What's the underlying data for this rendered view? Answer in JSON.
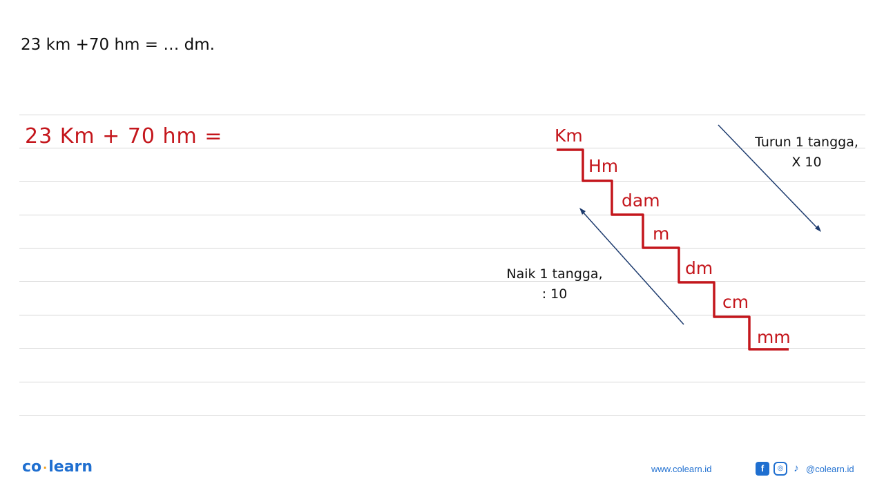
{
  "question": {
    "text": "23 km +70 hm = …   dm."
  },
  "handwriting": {
    "equation": "23 Km + 70 hm =",
    "units": [
      "Km",
      "Hm",
      "dam",
      "m",
      "dm",
      "cm",
      "mm"
    ]
  },
  "notes": {
    "down": {
      "line1": "Turun 1 tangga,",
      "line2": "X 10"
    },
    "up": {
      "line1": "Naik 1 tangga,",
      "line2": ": 10"
    }
  },
  "footer": {
    "logo_left": "co",
    "logo_right": "learn",
    "url": "www.colearn.id",
    "handle": "@colearn.id",
    "icons": [
      "facebook-icon",
      "instagram-icon",
      "tiktok-icon"
    ]
  },
  "colors": {
    "handwriting": "#c4161c",
    "brand": "#1f6fd0",
    "brand_accent": "#f2a01a",
    "arrow": "#1d3b6e",
    "rule": "#d7d7d7"
  }
}
